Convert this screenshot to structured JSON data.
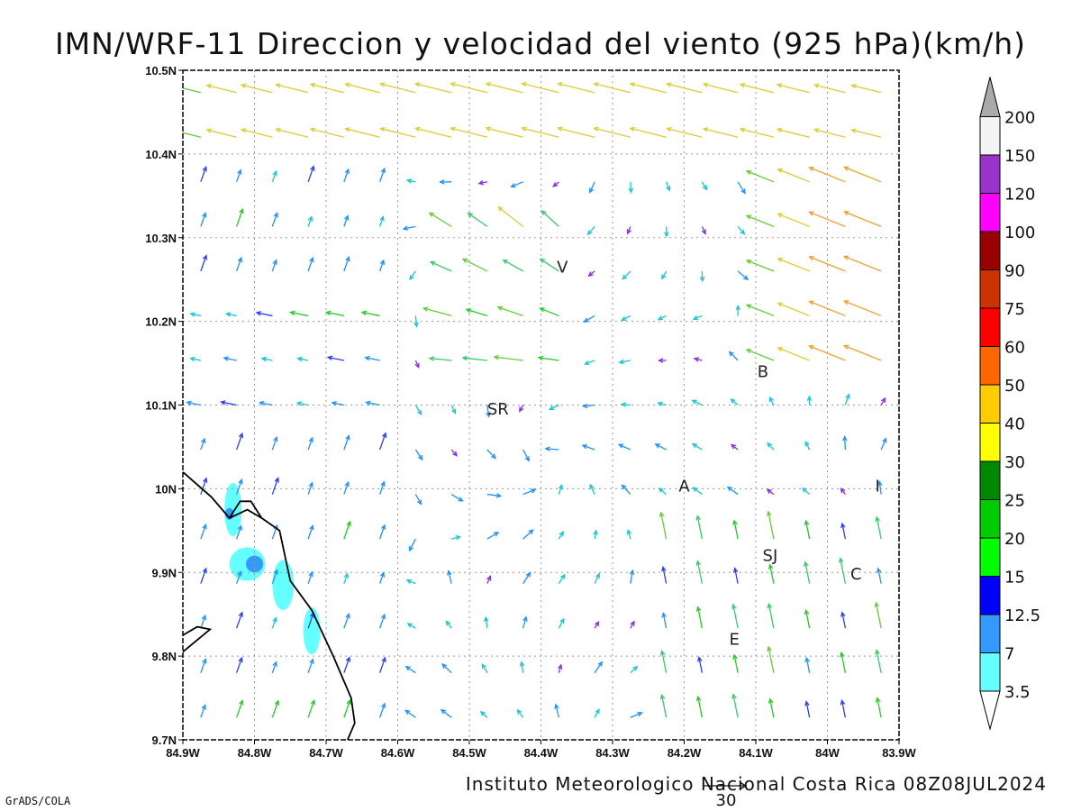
{
  "chart_data": {
    "type": "vector-field",
    "title": "IMN/WRF-11 Direccion y velocidad del viento (925 hPa)(km/h)",
    "footer": "Instituto Meteorologico Nacional Costa Rica 08Z08JUL2024",
    "credit": "GrADS/COLA",
    "reference_vector": {
      "value": "30",
      "units": "km/h"
    },
    "x_axis": {
      "range": [
        -84.9,
        -83.9
      ],
      "ticks": [
        {
          "value": -84.9,
          "label": "84.9W"
        },
        {
          "value": -84.8,
          "label": "84.8W"
        },
        {
          "value": -84.7,
          "label": "84.7W"
        },
        {
          "value": -84.6,
          "label": "84.6W"
        },
        {
          "value": -84.5,
          "label": "84.5W"
        },
        {
          "value": -84.4,
          "label": "84.4W"
        },
        {
          "value": -84.3,
          "label": "84.3W"
        },
        {
          "value": -84.2,
          "label": "84.2W"
        },
        {
          "value": -84.1,
          "label": "84.1W"
        },
        {
          "value": -84.0,
          "label": "84W"
        },
        {
          "value": -83.9,
          "label": "83.9W"
        }
      ]
    },
    "y_axis": {
      "range": [
        9.7,
        10.5
      ],
      "ticks": [
        {
          "value": 9.7,
          "label": "9.7N"
        },
        {
          "value": 9.8,
          "label": "9.8N"
        },
        {
          "value": 9.9,
          "label": "9.9N"
        },
        {
          "value": 10.0,
          "label": "10N"
        },
        {
          "value": 10.1,
          "label": "10.1N"
        },
        {
          "value": 10.2,
          "label": "10.2N"
        },
        {
          "value": 10.3,
          "label": "10.3N"
        },
        {
          "value": 10.4,
          "label": "10.4N"
        },
        {
          "value": 10.5,
          "label": "10.5N"
        }
      ]
    },
    "grid": "dotted",
    "colorbar": {
      "levels": [
        {
          "label": "3.5",
          "color": "#66ffff"
        },
        {
          "label": "7",
          "color": "#3399ff"
        },
        {
          "label": "12.5",
          "color": "#0000ff"
        },
        {
          "label": "15",
          "color": "#00ff00"
        },
        {
          "label": "20",
          "color": "#00cc00"
        },
        {
          "label": "25",
          "color": "#008800"
        },
        {
          "label": "30",
          "color": "#ffff00"
        },
        {
          "label": "40",
          "color": "#ffcc00"
        },
        {
          "label": "50",
          "color": "#ff6600"
        },
        {
          "label": "60",
          "color": "#ff0000"
        },
        {
          "label": "75",
          "color": "#cc3300"
        },
        {
          "label": "90",
          "color": "#990000"
        },
        {
          "label": "100",
          "color": "#ff00ff"
        },
        {
          "label": "120",
          "color": "#9933cc"
        },
        {
          "label": "150",
          "color": "#f4f4f4"
        },
        {
          "label": "200",
          "color": "#aaaaaa"
        }
      ],
      "below_color": "#ffffff"
    },
    "locations": [
      {
        "label": "V",
        "lon": -84.37,
        "lat": 10.265
      },
      {
        "label": "B",
        "lon": -84.09,
        "lat": 10.14
      },
      {
        "label": "SR",
        "lon": -84.46,
        "lat": 10.095
      },
      {
        "label": "A",
        "lon": -84.2,
        "lat": 10.003
      },
      {
        "label": "I",
        "lon": -83.93,
        "lat": 10.003
      },
      {
        "label": "SJ",
        "lon": -84.08,
        "lat": 9.92
      },
      {
        "label": "C",
        "lon": -83.96,
        "lat": 9.898
      },
      {
        "label": "E",
        "lon": -84.13,
        "lat": 9.82
      }
    ],
    "shaded_areas": [
      {
        "level": "3.5",
        "lon": -84.83,
        "lat": 9.975,
        "rlon": 0.012,
        "rlat": 0.032
      },
      {
        "level": "3.5",
        "lon": -84.81,
        "lat": 9.91,
        "rlon": 0.025,
        "rlat": 0.02
      },
      {
        "level": "3.5",
        "lon": -84.76,
        "lat": 9.885,
        "rlon": 0.015,
        "rlat": 0.03
      },
      {
        "level": "3.5",
        "lon": -84.72,
        "lat": 9.83,
        "rlon": 0.012,
        "rlat": 0.028
      },
      {
        "level": "7",
        "lon": -84.8,
        "lat": 9.91,
        "rlon": 0.012,
        "rlat": 0.01
      },
      {
        "level": "7",
        "lon": -84.835,
        "lat": 9.97,
        "rlon": 0.006,
        "rlat": 0.007
      }
    ],
    "coastline": [
      [
        [
          -84.9,
          10.02
        ],
        [
          -84.86,
          9.99
        ],
        [
          -84.835,
          9.965
        ],
        [
          -84.82,
          9.985
        ],
        [
          -84.805,
          9.985
        ],
        [
          -84.79,
          9.965
        ],
        [
          -84.765,
          9.95
        ],
        [
          -84.75,
          9.89
        ],
        [
          -84.72,
          9.855
        ],
        [
          -84.69,
          9.8
        ],
        [
          -84.665,
          9.75
        ],
        [
          -84.66,
          9.72
        ],
        [
          -84.67,
          9.7
        ]
      ],
      [
        [
          -84.835,
          9.965
        ],
        [
          -84.81,
          9.975
        ],
        [
          -84.79,
          9.965
        ]
      ],
      [
        [
          -84.9,
          9.825
        ],
        [
          -84.88,
          9.835
        ],
        [
          -84.862,
          9.832
        ],
        [
          -84.9,
          9.805
        ]
      ]
    ],
    "vector_field_summary": "Wind barbs at 925 hPa over the region 84.9W-83.9W, 9.7N-10.5N; strong northeasterly-to-easterly flow (30-50 km/h) in the north and east, light winds (<7 km/h) in the central valley, southwesterly onshore flow over the Pacific coast."
  }
}
